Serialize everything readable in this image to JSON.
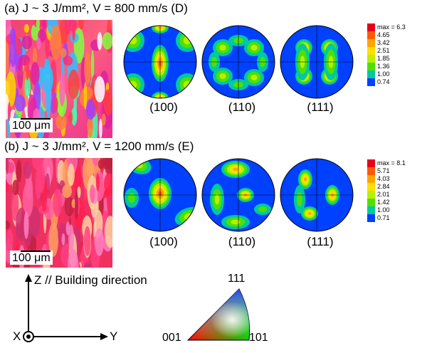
{
  "panel_a": {
    "title": "(a) J ~ 3 J/mm², V = 800 mm/s (D)",
    "scale_bar": "100 μm",
    "pole_labels": [
      "(100)",
      "(110)",
      "(111)"
    ],
    "legend_max": "max = 6.3",
    "legend_values": [
      "4.65",
      "3.42",
      "2.51",
      "1.85",
      "1.36",
      "1.00",
      "0.74"
    ],
    "legend_colors": [
      "#e8001a",
      "#ff5a00",
      "#ffa500",
      "#ffe000",
      "#b8f000",
      "#50e000",
      "#00c8a0",
      "#0040ff"
    ]
  },
  "panel_b": {
    "title": "(b) J ~ 3 J/mm², V = 1200 mm/s (E)",
    "scale_bar": "100 μm",
    "pole_labels": [
      "(100)",
      "(110)",
      "(111)"
    ],
    "legend_max": "max = 8.1",
    "legend_values": [
      "5.71",
      "4.03",
      "2.84",
      "2.01",
      "1.42",
      "1.00",
      "0.71"
    ],
    "legend_colors": [
      "#e8001a",
      "#ff5a00",
      "#ffa500",
      "#ffe000",
      "#b8f000",
      "#50e000",
      "#00c8a0",
      "#0040ff"
    ]
  },
  "axes": {
    "z_label": "Z // Building direction",
    "x_label": "X",
    "y_label": "Y"
  },
  "ipf_triangle": {
    "top": "111",
    "left": "001",
    "right": "101"
  }
}
